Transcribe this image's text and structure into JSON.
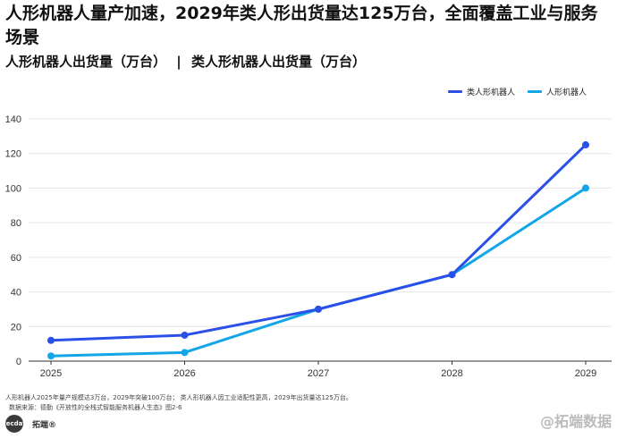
{
  "header": {
    "title": "人形机器人量产加速，2029年类人形出货量达125万台，全面覆盖工业与服务场景",
    "subtitle_left": "人形机器人出货量（万台）",
    "subtitle_sep": "|",
    "subtitle_right": "类人形机器人出货量（万台）"
  },
  "chart_data": {
    "type": "line",
    "x": [
      "2025",
      "2026",
      "2027",
      "2028",
      "2029"
    ],
    "series": [
      {
        "name": "类人形机器人",
        "values": [
          12,
          15,
          30,
          50,
          125
        ],
        "color": "#2b50e8"
      },
      {
        "name": "人形机器人",
        "values": [
          3,
          5,
          30,
          50,
          100
        ],
        "color": "#12a6e8"
      }
    ],
    "ylim": [
      0,
      140
    ],
    "yticks": [
      0,
      20,
      40,
      60,
      80,
      100,
      120,
      140
    ],
    "grid": true,
    "legend": "top-right"
  },
  "footer": {
    "note": "人形机器人2025年量产规模达3万台，2029年突破100万台；  类人形机器人因工业适配性更高，2029年出货量达125万台。",
    "source": "数据来源：德勤《开放性的全栈式智能服务机器人生态》图2-6",
    "brand_logo": "tecdat",
    "brand_name": "拓端®",
    "watermark": "@拓端数据"
  }
}
